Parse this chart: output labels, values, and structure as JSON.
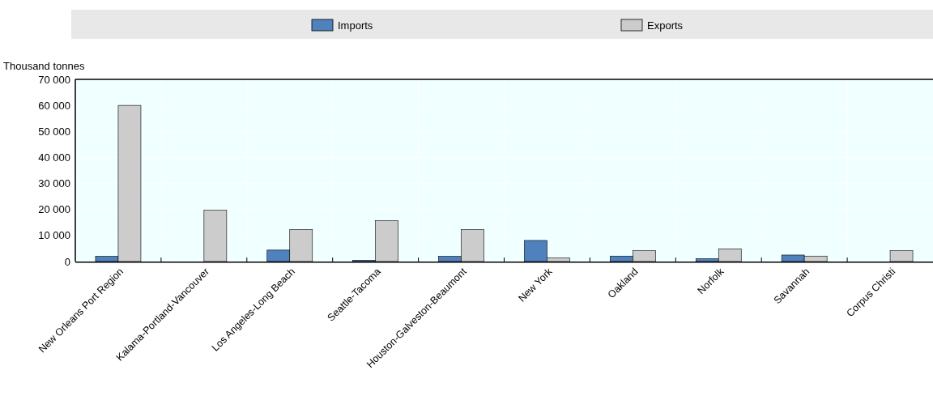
{
  "chart_data": {
    "type": "bar",
    "ylabel": "Thousand tonnes",
    "categories": [
      "New Orleans Port Region",
      "Kalama-Portland-Vancouver",
      "Los Angeles-Long Beach",
      "Seattle-Tacoma",
      "Houston-Galveston-Beaumont",
      "New York",
      "Oakland",
      "Norfolk",
      "Savannah",
      "Corpus Christi"
    ],
    "series": [
      {
        "name": "Imports",
        "color": "#4f81bd",
        "values": [
          2000,
          0,
          4400,
          500,
          2000,
          8100,
          2100,
          1100,
          2500,
          0
        ]
      },
      {
        "name": "Exports",
        "color": "#cccccc",
        "values": [
          60000,
          19700,
          12300,
          15700,
          12300,
          1400,
          4200,
          4900,
          2100,
          4200
        ]
      }
    ],
    "ylim": [
      0,
      70000
    ],
    "yticks": [
      {
        "value": 0,
        "label": "0"
      },
      {
        "value": 10000,
        "label": "10 000"
      },
      {
        "value": 20000,
        "label": "20 000"
      },
      {
        "value": 30000,
        "label": "30 000"
      },
      {
        "value": 40000,
        "label": "40 000"
      },
      {
        "value": 50000,
        "label": "50 000"
      },
      {
        "value": 60000,
        "label": "60 000"
      },
      {
        "value": 70000,
        "label": "70 000"
      }
    ],
    "grid": true,
    "legend": "top"
  }
}
